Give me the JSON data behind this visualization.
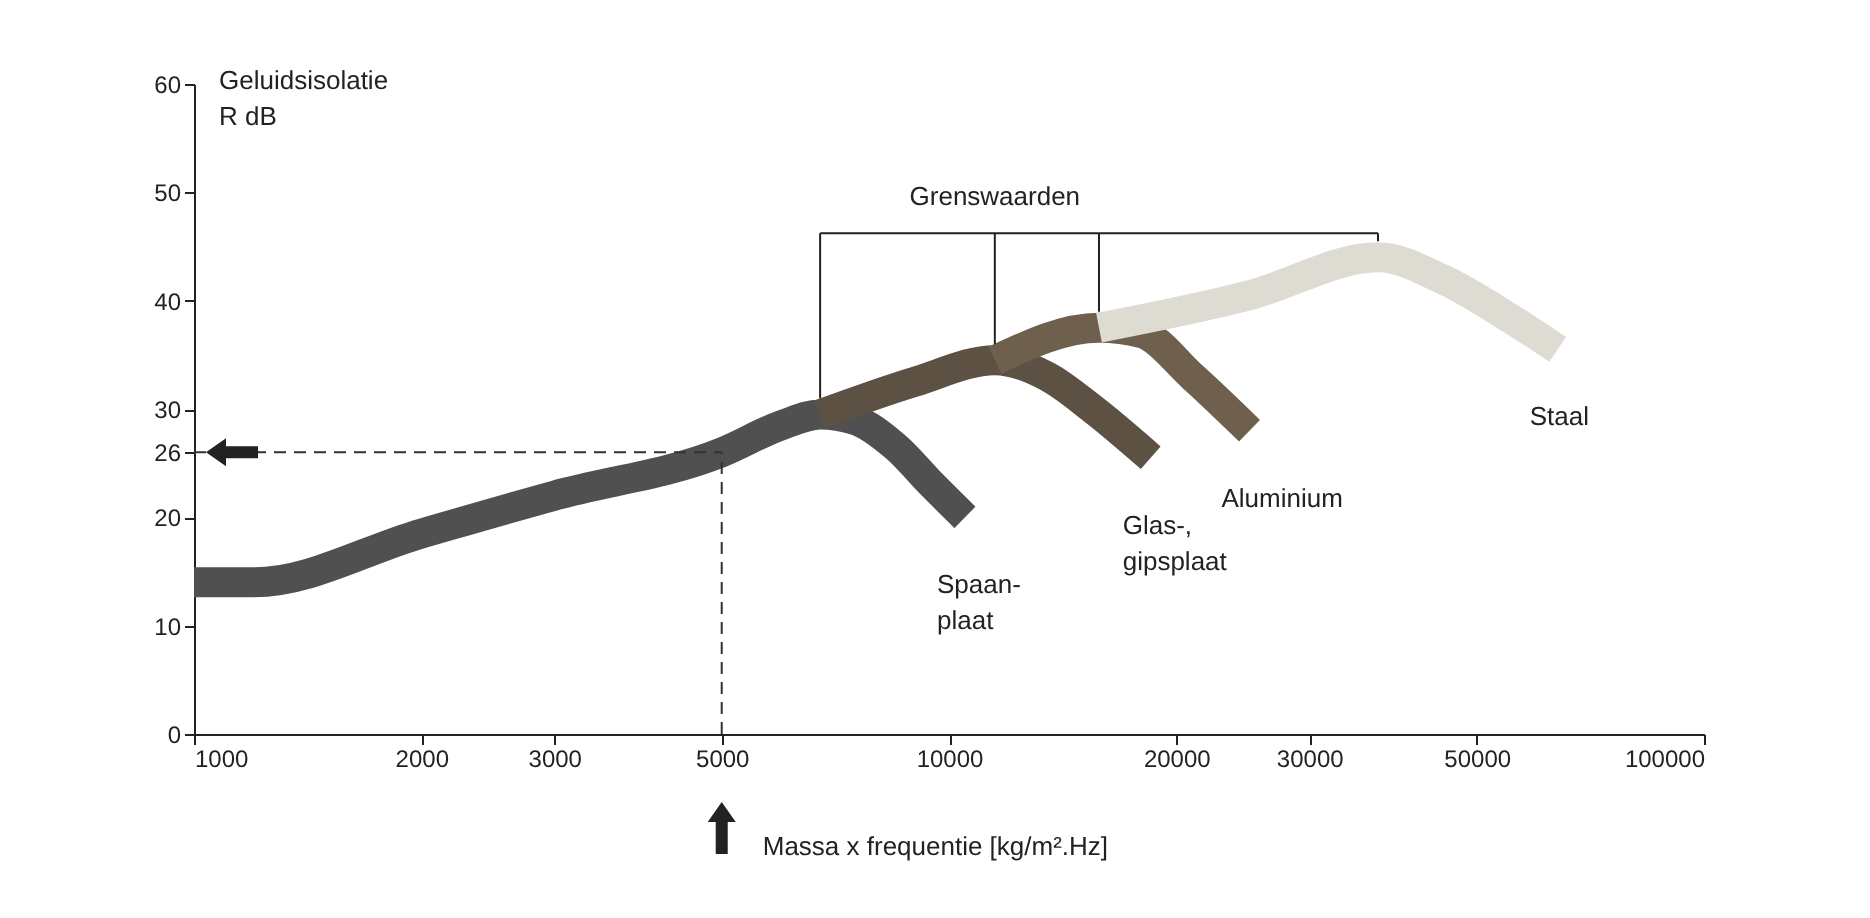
{
  "chart_data": {
    "type": "line",
    "xlabel": "Massa x frequentie [kg/m².Hz]",
    "ylabel": "Geluidsisolatie\nR dB",
    "log": "x",
    "xlim": [
      1000,
      100000
    ],
    "xticks": [
      1000,
      2000,
      3000,
      5000,
      10000,
      20000,
      30000,
      50000,
      100000
    ],
    "ylim": [
      0,
      60
    ],
    "yticks": [
      0,
      10,
      20,
      26,
      30,
      40,
      50,
      60
    ],
    "grid": false,
    "legend": false,
    "marker": "none",
    "line_style": "solid",
    "series": [
      {
        "name": "Spaan-\nplaat",
        "color": "#505050",
        "x": [
          1000,
          1200,
          2000,
          3000,
          5000,
          6000,
          6750,
          7500,
          8500,
          9500,
          10500
        ],
        "values": [
          14,
          14,
          18.5,
          22,
          26,
          28.5,
          29.5,
          29,
          26.5,
          23,
          20
        ]
      },
      {
        "name": "Glas-,\ngipsplaat",
        "color": "#5c5142",
        "x": [
          6750,
          9000,
          11500,
          13500,
          15500,
          18500
        ],
        "values": [
          29.5,
          32.5,
          34.5,
          33,
          30,
          25.5
        ]
      },
      {
        "name": "Aluminium",
        "color": "#6e604d",
        "x": [
          11500,
          15800,
          18000,
          21000,
          25000
        ],
        "values": [
          34.5,
          37.5,
          37,
          33,
          28
        ]
      },
      {
        "name": "Staal",
        "color": "#dedbd2",
        "x": [
          15800,
          25000,
          37000,
          45000,
          55000,
          64000
        ],
        "values": [
          37.5,
          40.5,
          44,
          42,
          38.5,
          35.5
        ]
      }
    ],
    "ref_lines": [
      {
        "axis": "y",
        "value": 26,
        "line_style": "dashed"
      },
      {
        "axis": "x",
        "value": 5000,
        "line_style": "dashed"
      }
    ],
    "annotations": [
      {
        "text": "Grenswaarden",
        "x": 11500,
        "y": 34.5
      }
    ]
  }
}
